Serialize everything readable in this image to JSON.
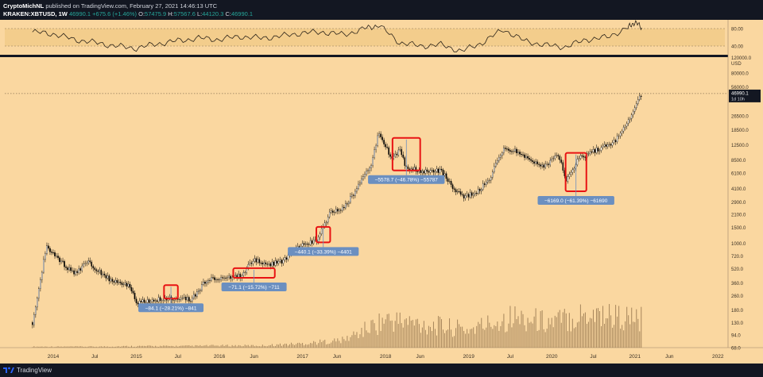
{
  "header": {
    "author": "CryptoMichNL",
    "published": "published on TradingView.com, February 27, 2021 14:46:13 UTC",
    "symbol": "KRAKEN:XBTUSD, 1W",
    "price": "46990.1",
    "change": "+675.6 (+1.46%)",
    "open_label": "O:",
    "open": "57475.9",
    "high_label": "H:",
    "high": "57567.6",
    "low_label": "L:",
    "low": "44120.3",
    "close_label": "C:",
    "close": "46990.1"
  },
  "footer": {
    "brand": "TradingView"
  },
  "colors": {
    "background": "#fad7a0",
    "candle": "#000000",
    "volume": "#8a6a44",
    "highlight_box": "#e81313",
    "label_fill": "#6b8fc0",
    "price_tag": "#131722"
  },
  "chart_data": [
    {
      "type": "line",
      "panel": "rsi-oscillator",
      "y_ticks": [
        "80.00",
        "40.00"
      ],
      "ylim": [
        20,
        100
      ],
      "band": [
        40,
        80
      ],
      "x": [
        "2013-10",
        "2014-01",
        "2014-04",
        "2014-07",
        "2014-10",
        "2015-01",
        "2015-04",
        "2015-07",
        "2015-10",
        "2016-01",
        "2016-04",
        "2016-07",
        "2016-10",
        "2017-01",
        "2017-04",
        "2017-07",
        "2017-10",
        "2017-12",
        "2018-03",
        "2018-06",
        "2018-09",
        "2018-12",
        "2019-03",
        "2019-06",
        "2019-09",
        "2019-12",
        "2020-03",
        "2020-06",
        "2020-09",
        "2020-12",
        "2021-01",
        "2021-02"
      ],
      "values": [
        72,
        68,
        55,
        48,
        40,
        35,
        45,
        52,
        58,
        55,
        62,
        58,
        63,
        70,
        72,
        66,
        80,
        88,
        48,
        40,
        43,
        28,
        48,
        78,
        52,
        42,
        38,
        55,
        60,
        82,
        95,
        82
      ]
    },
    {
      "type": "candlestick",
      "panel": "price",
      "scale": "log",
      "currency": "USD",
      "y_ticks": [
        "80000.0",
        "56000.0",
        "26500.0",
        "18500.0",
        "12500.0",
        "8500.0",
        "6100.0",
        "4100.0",
        "2900.0",
        "2100.0",
        "1500.0",
        "1000.0",
        "720.0",
        "520.0",
        "360.0",
        "260.0",
        "180.0",
        "130.0",
        "94.0",
        "68.0"
      ],
      "partial_top_tick": "120000.0",
      "ylim": [
        68,
        120000
      ],
      "x_ticks": [
        "2014",
        "Jul",
        "2015",
        "Jul",
        "2016",
        "Jun",
        "2017",
        "Jun",
        "2018",
        "Jun",
        "2019",
        "Jul",
        "2020",
        "Jul",
        "2021",
        "Jun",
        "2022"
      ],
      "xlim": [
        "2013-06",
        "2022-02"
      ],
      "trend": [
        [
          "2013-10",
          130
        ],
        [
          "2013-12",
          900
        ],
        [
          "2014-02",
          640
        ],
        [
          "2014-04",
          450
        ],
        [
          "2014-06",
          620
        ],
        [
          "2014-09",
          400
        ],
        [
          "2014-12",
          330
        ],
        [
          "2015-01",
          215
        ],
        [
          "2015-04",
          235
        ],
        [
          "2015-06",
          245
        ],
        [
          "2015-09",
          235
        ],
        [
          "2015-11",
          380
        ],
        [
          "2016-01",
          410
        ],
        [
          "2016-04",
          430
        ],
        [
          "2016-06",
          650
        ],
        [
          "2016-08",
          575
        ],
        [
          "2016-10",
          630
        ],
        [
          "2017-01",
          960
        ],
        [
          "2017-03",
          1050
        ],
        [
          "2017-05",
          2200
        ],
        [
          "2017-07",
          2500
        ],
        [
          "2017-09",
          4200
        ],
        [
          "2017-11",
          8000
        ],
        [
          "2017-12",
          17000
        ],
        [
          "2018-02",
          8500
        ],
        [
          "2018-03",
          11000
        ],
        [
          "2018-04",
          7000
        ],
        [
          "2018-06",
          6400
        ],
        [
          "2018-09",
          6500
        ],
        [
          "2018-11",
          4000
        ],
        [
          "2018-12",
          3300
        ],
        [
          "2019-02",
          3600
        ],
        [
          "2019-04",
          5200
        ],
        [
          "2019-06",
          11500
        ],
        [
          "2019-08",
          10500
        ],
        [
          "2019-10",
          8300
        ],
        [
          "2019-12",
          7200
        ],
        [
          "2020-02",
          10000
        ],
        [
          "2020-03",
          5000
        ],
        [
          "2020-05",
          9000
        ],
        [
          "2020-08",
          11500
        ],
        [
          "2020-10",
          13500
        ],
        [
          "2020-12",
          23500
        ],
        [
          "2021-01",
          33000
        ],
        [
          "2021-02",
          46990
        ]
      ],
      "last_price_tag": {
        "value": "46990.1",
        "countdown": "1d 10h"
      },
      "annotations": [
        {
          "label": "−84.1 (−28.21%) −841",
          "box": [
            "2015-05",
            "2015-07"
          ],
          "price_range": [
            240,
            340
          ]
        },
        {
          "label": "−71.1 (−15.72%) −711",
          "box": [
            "2016-03",
            "2016-09"
          ],
          "price_range": [
            410,
            525
          ]
        },
        {
          "label": "−440.1 (−33.39%) −4401",
          "box": [
            "2017-03",
            "2017-05"
          ],
          "price_range": [
            1020,
            1520
          ]
        },
        {
          "label": "−5578.7 (−46.78%) −55787",
          "box": [
            "2018-02",
            "2018-06"
          ],
          "price_range": [
            6500,
            15000
          ]
        },
        {
          "label": "−6169.0 (−61.39%) −61690",
          "box": [
            "2020-03",
            "2020-06"
          ],
          "price_range": [
            3800,
            10200
          ]
        }
      ]
    },
    {
      "type": "bar",
      "panel": "volume",
      "note": "volume histogram along bottom of price pane",
      "x": [
        "2014-01",
        "2014-07",
        "2015-01",
        "2015-07",
        "2016-01",
        "2016-07",
        "2017-01",
        "2017-07",
        "2018-01",
        "2018-07",
        "2019-01",
        "2019-07",
        "2020-01",
        "2020-07",
        "2021-01"
      ],
      "values": [
        2,
        2,
        3,
        3,
        4,
        4,
        8,
        15,
        55,
        45,
        35,
        60,
        50,
        70,
        55
      ]
    }
  ]
}
